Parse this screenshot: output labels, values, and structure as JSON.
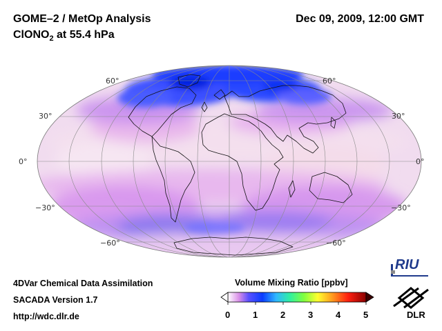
{
  "header": {
    "title_line1": "GOME–2 / MetOp Analysis",
    "title_species_prefix": "ClONO",
    "title_species_sub": "2",
    "title_species_suffix": " at 55.4 hPa",
    "datetime": "Dec 09, 2009, 12:00 GMT"
  },
  "map": {
    "projection": "Mollweide",
    "lat_labels": [
      "60°",
      "30°",
      "0°",
      "−30°",
      "−60°"
    ],
    "lat_label_values": [
      60,
      30,
      0,
      -30,
      -60
    ]
  },
  "colorbar": {
    "title": "Volume Mixing Ratio [ppbv]",
    "ticks": [
      "0",
      "1",
      "2",
      "3",
      "4",
      "5"
    ],
    "min": 0,
    "max": 5,
    "colors": [
      "#ffffff",
      "#cc88ee",
      "#5050ff",
      "#0040ff",
      "#40c0ff",
      "#40ff80",
      "#ffff40",
      "#ff8000",
      "#ff0000",
      "#a00000"
    ]
  },
  "footer": {
    "line1": "4DVar Chemical Data Assimilation",
    "line2": "SACADA Version 1.7",
    "line3": "http://wdc.dlr.de"
  },
  "logos": {
    "riu": "RIU",
    "dlr": "DLR"
  }
}
